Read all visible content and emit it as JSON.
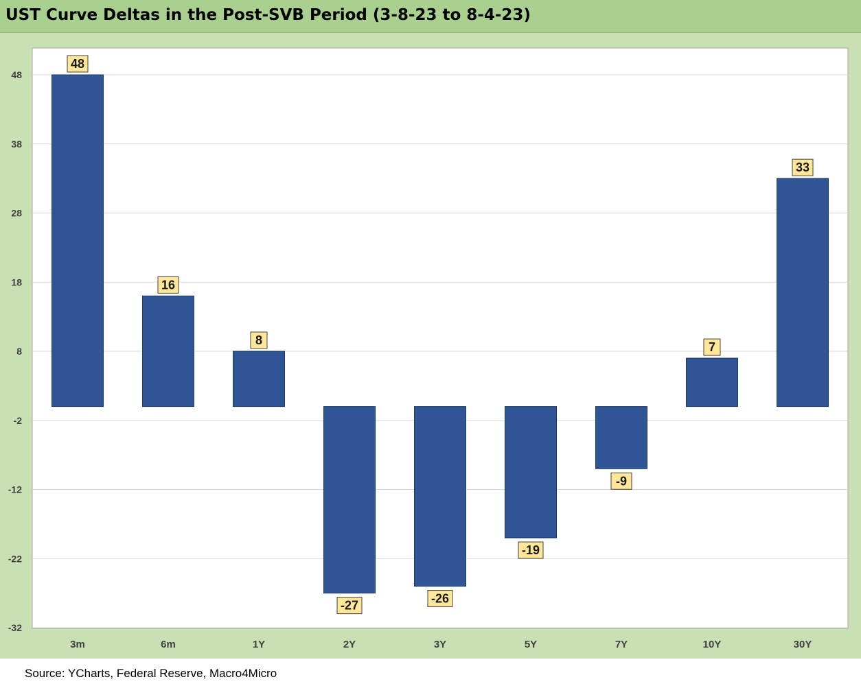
{
  "title": "UST Curve Deltas in the Post-SVB Period (3-8-23 to 8-4-23)",
  "source": "Source: YCharts, Federal Reserve, Macro4Micro",
  "colors": {
    "bar": "#2f5597",
    "label_bg": "#ffe699",
    "grid": "#d9d9d9",
    "title_bg": "#a9d08e",
    "frame_bg": "#c8e0b4"
  },
  "chart_data": {
    "type": "bar",
    "title": "UST Curve Deltas in the Post-SVB Period (3-8-23 to 8-4-23)",
    "categories": [
      "3m",
      "6m",
      "1Y",
      "2Y",
      "3Y",
      "5Y",
      "7Y",
      "10Y",
      "30Y"
    ],
    "values": [
      48,
      16,
      8,
      -27,
      -26,
      -19,
      -9,
      7,
      33
    ],
    "value_labels": [
      "48",
      "16",
      "8",
      "-27",
      "-26",
      "-19",
      "-9",
      "7",
      "33"
    ],
    "yticks": [
      48,
      38,
      28,
      18,
      8,
      -2,
      -12,
      -22,
      -32
    ],
    "ytick_labels": [
      "48",
      "38",
      "28",
      "18",
      "8",
      "-2",
      "-12",
      "-22",
      "-32"
    ],
    "ylim": [
      -32,
      52
    ],
    "xlabel": "",
    "ylabel": "",
    "grid": true,
    "legend": "none"
  }
}
